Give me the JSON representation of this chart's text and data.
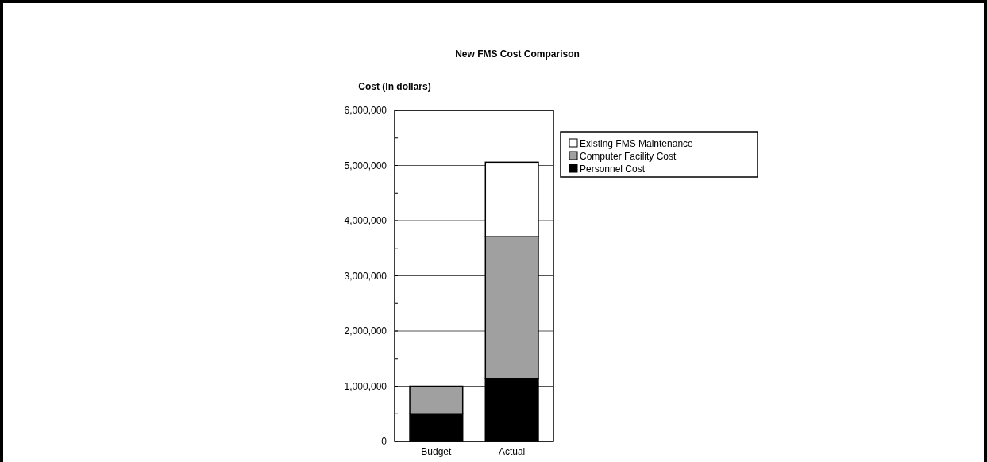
{
  "chart_data": {
    "type": "bar",
    "title": "New FMS Cost Comparison",
    "ylabel": "Cost (In dollars)",
    "categories": [
      "Budget",
      "Actual"
    ],
    "stacked": true,
    "series": [
      {
        "name": "Personnel Cost",
        "color": "#000000",
        "values": [
          500000,
          1140000
        ]
      },
      {
        "name": "Computer Facility Cost",
        "color": "#a0a0a0",
        "values": [
          500000,
          2570000
        ]
      },
      {
        "name": "Existing FMS Maintenance",
        "color": "#ffffff",
        "values": [
          0,
          1350000
        ]
      }
    ],
    "ylim": [
      0,
      6000000
    ],
    "yticks": [
      0,
      {
        "value": 500000,
        "label": null
      },
      {
        "value": 1000000,
        "label": "1,000,000"
      },
      {
        "value": 1500000,
        "label": null
      },
      {
        "value": 2000000,
        "label": "2,000,000"
      },
      {
        "value": 2500000,
        "label": null
      },
      {
        "value": 3000000,
        "label": "3,000,000"
      },
      {
        "value": 3500000,
        "label": null
      },
      {
        "value": 4000000,
        "label": "4,000,000"
      },
      {
        "value": 4500000,
        "label": null
      },
      {
        "value": 5000000,
        "label": "5,000,000"
      },
      {
        "value": 5500000,
        "label": null
      },
      {
        "value": 6000000,
        "label": "6,000,000"
      }
    ],
    "grid": "y",
    "legend": "top right"
  }
}
